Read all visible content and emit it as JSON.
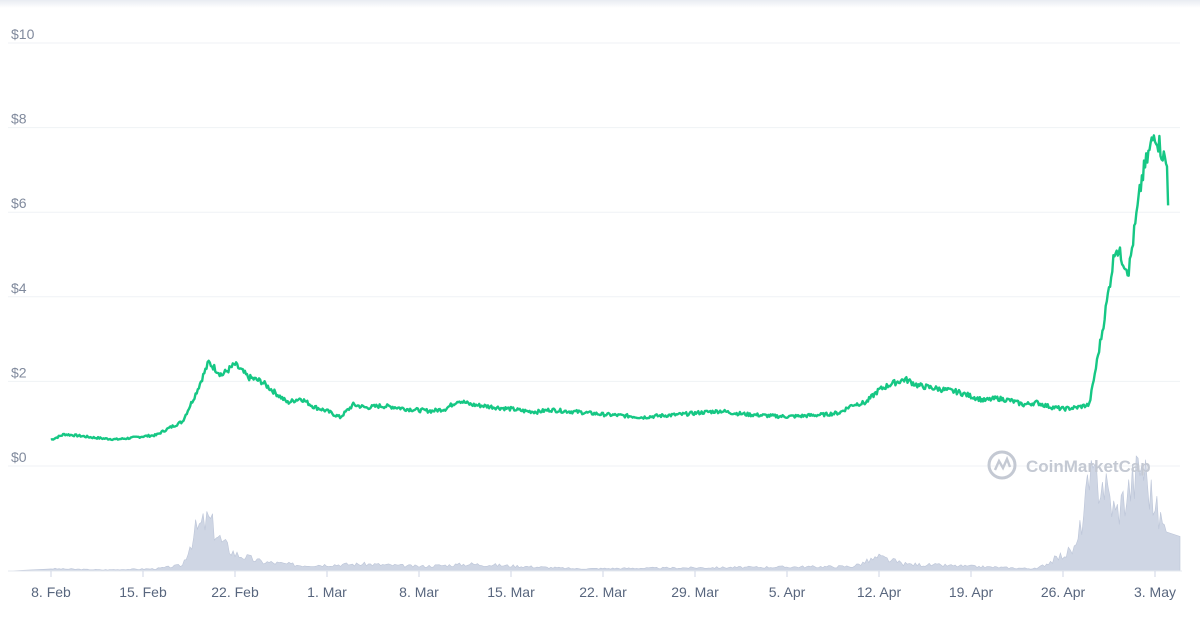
{
  "chart_data": {
    "type": "line",
    "title": "",
    "xlabel": "",
    "ylabel": "",
    "ylim": [
      0,
      10
    ],
    "y_ticks": [
      "$0",
      "$2",
      "$4",
      "$6",
      "$8",
      "$10"
    ],
    "y_tick_values": [
      0,
      2,
      4,
      6,
      8,
      10
    ],
    "x_ticks": [
      "8. Feb",
      "15. Feb",
      "22. Feb",
      "1. Mar",
      "8. Mar",
      "15. Mar",
      "22. Mar",
      "29. Mar",
      "5. Apr",
      "12. Apr",
      "19. Apr",
      "26. Apr",
      "3. May"
    ],
    "x_tick_dates": [
      "2021-02-08",
      "2021-02-15",
      "2021-02-22",
      "2021-03-01",
      "2021-03-08",
      "2021-03-15",
      "2021-03-22",
      "2021-03-29",
      "2021-04-05",
      "2021-04-12",
      "2021-04-19",
      "2021-04-26",
      "2021-05-03"
    ],
    "grid": true,
    "line_color": "#16c784",
    "volume_color": "#cfd6e4",
    "series": [
      {
        "x": [
          "2021-02-08",
          "2021-02-09",
          "2021-02-10",
          "2021-02-11",
          "2021-02-12",
          "2021-02-13",
          "2021-02-14",
          "2021-02-15",
          "2021-02-16",
          "2021-02-17",
          "2021-02-18",
          "2021-02-19",
          "2021-02-20",
          "2021-02-21",
          "2021-02-22",
          "2021-02-23",
          "2021-02-24",
          "2021-02-25",
          "2021-02-26",
          "2021-02-27",
          "2021-02-28",
          "2021-03-01",
          "2021-03-02",
          "2021-03-03",
          "2021-03-04",
          "2021-03-05",
          "2021-03-06",
          "2021-03-07",
          "2021-03-08",
          "2021-03-09",
          "2021-03-10",
          "2021-03-11",
          "2021-03-12",
          "2021-03-13",
          "2021-03-14",
          "2021-03-15",
          "2021-03-16",
          "2021-03-17",
          "2021-03-18",
          "2021-03-19",
          "2021-03-20",
          "2021-03-21",
          "2021-03-22",
          "2021-03-23",
          "2021-03-24",
          "2021-03-25",
          "2021-03-26",
          "2021-03-27",
          "2021-03-28",
          "2021-03-29",
          "2021-03-30",
          "2021-03-31",
          "2021-04-01",
          "2021-04-02",
          "2021-04-03",
          "2021-04-04",
          "2021-04-05",
          "2021-04-06",
          "2021-04-07",
          "2021-04-08",
          "2021-04-09",
          "2021-04-10",
          "2021-04-11",
          "2021-04-12",
          "2021-04-13",
          "2021-04-14",
          "2021-04-15",
          "2021-04-16",
          "2021-04-17",
          "2021-04-18",
          "2021-04-19",
          "2021-04-20",
          "2021-04-21",
          "2021-04-22",
          "2021-04-23",
          "2021-04-24",
          "2021-04-25",
          "2021-04-26",
          "2021-04-27",
          "2021-04-28",
          "2021-04-29",
          "2021-04-30",
          "2021-05-01",
          "2021-05-02",
          "2021-05-03",
          "2021-05-04"
        ],
        "values": [
          0.62,
          0.75,
          0.72,
          0.68,
          0.65,
          0.63,
          0.66,
          0.7,
          0.73,
          0.9,
          1.05,
          1.7,
          2.45,
          2.15,
          2.4,
          2.1,
          2.0,
          1.75,
          1.5,
          1.6,
          1.4,
          1.3,
          1.15,
          1.45,
          1.38,
          1.42,
          1.4,
          1.35,
          1.32,
          1.3,
          1.35,
          1.55,
          1.45,
          1.42,
          1.38,
          1.35,
          1.3,
          1.28,
          1.33,
          1.3,
          1.28,
          1.25,
          1.22,
          1.2,
          1.18,
          1.15,
          1.18,
          1.2,
          1.22,
          1.25,
          1.28,
          1.3,
          1.25,
          1.22,
          1.2,
          1.18,
          1.17,
          1.18,
          1.2,
          1.22,
          1.26,
          1.45,
          1.5,
          1.8,
          1.95,
          2.05,
          1.9,
          1.85,
          1.8,
          1.75,
          1.65,
          1.55,
          1.6,
          1.55,
          1.45,
          1.5,
          1.4,
          1.35,
          1.38,
          1.45,
          3.2,
          5.2,
          4.6,
          6.8,
          7.9,
          7.0
        ]
      }
    ],
    "volume_series": [
      {
        "x": [
          "2021-02-08",
          "2021-02-12",
          "2021-02-16",
          "2021-02-18",
          "2021-02-19",
          "2021-02-20",
          "2021-02-21",
          "2021-02-22",
          "2021-02-24",
          "2021-02-27",
          "2021-03-04",
          "2021-03-08",
          "2021-03-12",
          "2021-03-20",
          "2021-04-10",
          "2021-04-12",
          "2021-04-14",
          "2021-04-24",
          "2021-04-27",
          "2021-04-28",
          "2021-04-29",
          "2021-04-30",
          "2021-05-01",
          "2021-05-02",
          "2021-05-03",
          "2021-05-04"
        ],
        "values": [
          0.02,
          0.01,
          0.02,
          0.05,
          0.35,
          0.45,
          0.25,
          0.15,
          0.08,
          0.05,
          0.06,
          0.04,
          0.06,
          0.02,
          0.04,
          0.12,
          0.06,
          0.02,
          0.2,
          0.75,
          0.8,
          0.5,
          0.7,
          0.95,
          0.55,
          0.3
        ]
      }
    ],
    "watermark": "CoinMarketCap"
  }
}
